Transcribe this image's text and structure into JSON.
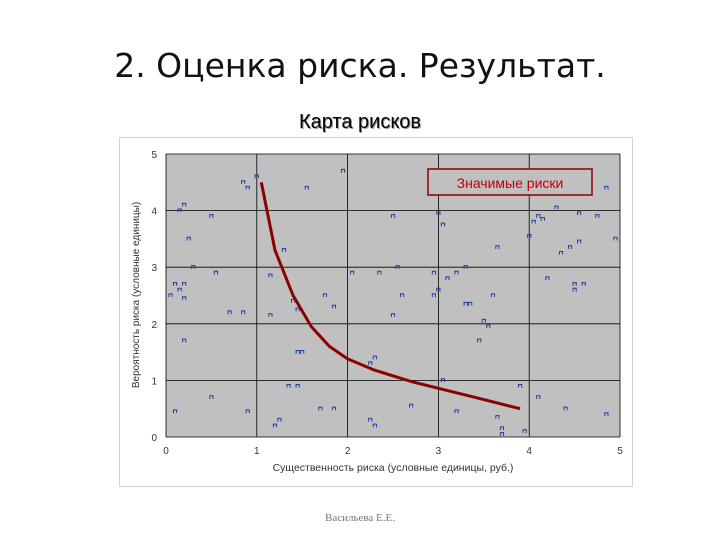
{
  "slide": {
    "title": "2. Оценка риска. Результат.",
    "chart_heading": "Карта рисков",
    "footer": "Васильева Е.Е."
  },
  "colors": {
    "curve": "#8b0000",
    "plot_background": "#c0c0c0",
    "grid": "#000000",
    "points": "#1f3a9e",
    "annotation_text": "#c00000",
    "annotation_border": "#8b0000"
  },
  "chart_data": {
    "type": "scatter",
    "xlabel": "Существенность риска (условные единицы,  руб.)",
    "ylabel": "Вероятность риска (условные единицы)",
    "xlim": [
      0,
      5
    ],
    "ylim": [
      0,
      5
    ],
    "x_ticks": [
      "0",
      "1",
      "2",
      "3",
      "4",
      "5"
    ],
    "y_ticks": [
      "0",
      "1",
      "2",
      "3",
      "4",
      "5"
    ],
    "grid": true,
    "annotation": "Значимые риски",
    "threshold_curve": {
      "x": [
        1.05,
        1.2,
        1.4,
        1.6,
        1.8,
        2.0,
        2.3,
        2.7,
        3.1,
        3.5,
        3.9
      ],
      "y": [
        4.5,
        3.3,
        2.5,
        1.95,
        1.6,
        1.38,
        1.18,
        0.98,
        0.82,
        0.66,
        0.5
      ]
    },
    "points": {
      "x": [
        0.9,
        0.85,
        1.0,
        1.55,
        1.95,
        0.15,
        0.2,
        0.5,
        0.25,
        1.3,
        0.3,
        0.55,
        1.15,
        2.55,
        2.5,
        2.05,
        2.35,
        2.95,
        3.3,
        3.2,
        3.6,
        0.05,
        0.15,
        0.1,
        0.2,
        0.2,
        0.7,
        0.85,
        1.15,
        1.4,
        1.45,
        1.85,
        1.75,
        2.6,
        2.5,
        2.95,
        3.0,
        3.1,
        3.3,
        3.35,
        3.55,
        4.2,
        4.5,
        4.6,
        0.2,
        1.5,
        1.45,
        2.25,
        2.3,
        3.05,
        3.9,
        1.35,
        1.45,
        0.5,
        0.9,
        1.7,
        1.85,
        2.7,
        3.2,
        3.95,
        4.1,
        0.1,
        1.2,
        1.25,
        2.3,
        2.25,
        3.65,
        4.0,
        4.35,
        4.45,
        4.55,
        4.05,
        4.3,
        4.3,
        4.1,
        4.05,
        4.15,
        4.75,
        4.85,
        4.95,
        4.55,
        4.5,
        4.4,
        3.65,
        3.7,
        3.7,
        3.5,
        3.45,
        3.05,
        3.0,
        4.85
      ],
      "y": [
        4.4,
        4.5,
        4.6,
        4.4,
        4.7,
        4.0,
        4.1,
        3.9,
        3.5,
        3.3,
        3.0,
        2.9,
        2.85,
        3.0,
        3.9,
        2.9,
        2.9,
        2.9,
        3.0,
        2.9,
        2.5,
        2.5,
        2.6,
        2.7,
        2.7,
        2.45,
        2.2,
        2.2,
        2.15,
        2.4,
        2.25,
        2.3,
        2.5,
        2.5,
        2.15,
        2.5,
        2.6,
        2.8,
        2.35,
        2.35,
        1.95,
        2.8,
        2.7,
        2.7,
        1.7,
        1.5,
        1.5,
        1.3,
        1.4,
        1.0,
        0.9,
        0.9,
        0.9,
        0.7,
        0.45,
        0.5,
        0.5,
        0.55,
        0.45,
        0.1,
        0.7,
        0.45,
        0.2,
        0.3,
        0.2,
        0.3,
        3.35,
        3.55,
        3.25,
        3.35,
        3.45,
        4.35,
        4.05,
        4.3,
        3.9,
        3.8,
        3.85,
        3.9,
        4.4,
        3.5,
        3.95,
        2.6,
        0.5,
        0.35,
        0.15,
        0.05,
        2.05,
        1.7,
        3.75,
        3.95,
        0.4
      ]
    }
  }
}
